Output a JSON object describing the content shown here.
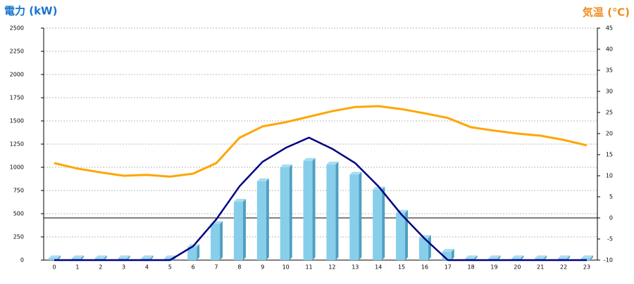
{
  "chart_data": {
    "type": "bar",
    "ylabel": "電力 (kW)",
    "y2label": "気温 (℃)",
    "categories": [
      "0",
      "1",
      "2",
      "3",
      "4",
      "5",
      "6",
      "7",
      "8",
      "9",
      "10",
      "11",
      "12",
      "13",
      "14",
      "15",
      "16",
      "17",
      "18",
      "19",
      "20",
      "21",
      "22",
      "23"
    ],
    "series": [
      {
        "type": "bar",
        "color": "#87ceeb",
        "values": [
          20,
          20,
          20,
          20,
          20,
          20,
          140,
          390,
          630,
          850,
          1000,
          1070,
          1030,
          920,
          760,
          510,
          240,
          90,
          20,
          20,
          20,
          20,
          20,
          20
        ]
      },
      {
        "type": "line",
        "color": "#000080",
        "values": [
          0,
          0,
          0,
          0,
          0,
          0,
          150,
          440,
          795,
          1060,
          1210,
          1320,
          1200,
          1045,
          795,
          490,
          230,
          0,
          0,
          0,
          0,
          0,
          0,
          0
        ]
      },
      {
        "type": "line",
        "axis": "y2",
        "color": "#ffa500",
        "values": [
          13,
          11.7,
          10.8,
          10,
          10.2,
          9.8,
          10.5,
          13,
          19,
          21.7,
          22.7,
          24,
          25.3,
          26.3,
          26.5,
          25.8,
          24.8,
          23.7,
          21.5,
          20.7,
          20,
          19.5,
          18.5,
          17.2
        ]
      }
    ],
    "ylim": [
      0,
      2500
    ],
    "yticks": [
      0,
      250,
      500,
      750,
      1000,
      1250,
      1500,
      1750,
      2000,
      2250,
      2500
    ],
    "y2lim": [
      -10,
      45
    ],
    "y2ticks": [
      -10,
      -5,
      0,
      5,
      10,
      15,
      20,
      25,
      30,
      35,
      40,
      45
    ],
    "grid": true
  }
}
